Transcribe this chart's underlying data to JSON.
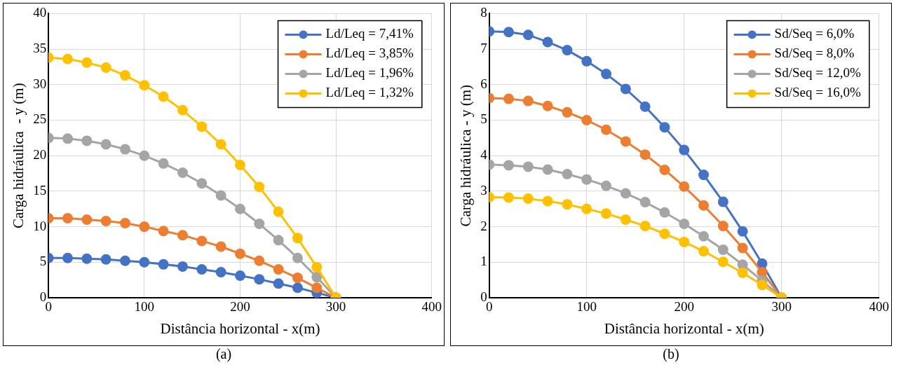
{
  "chart_data": [
    {
      "type": "line",
      "xlabel": "Distância horizontal - x(m)",
      "ylabel": "Carga hidráulica  - y (m)",
      "annotations": [
        "(a)"
      ],
      "x": [
        0,
        20,
        40,
        60,
        80,
        100,
        120,
        140,
        160,
        180,
        200,
        220,
        240,
        260,
        280,
        300
      ],
      "xlim": [
        0,
        400
      ],
      "xticks": [
        0,
        100,
        200,
        300,
        400
      ],
      "ylim": [
        0,
        40
      ],
      "yticks": [
        0,
        5,
        10,
        15,
        20,
        25,
        30,
        35,
        40
      ],
      "grid": true,
      "legend": "top right",
      "marker": "circle",
      "series": [
        {
          "name": "Ld/Leq = 7,41%",
          "color": "#4472c4",
          "values": [
            5.6,
            5.6,
            5.5,
            5.4,
            5.2,
            5.0,
            4.7,
            4.4,
            4.0,
            3.6,
            3.1,
            2.6,
            2.0,
            1.4,
            0.7,
            0
          ]
        },
        {
          "name": "Ld/Leq = 3,85%",
          "color": "#ed7d31",
          "values": [
            11.2,
            11.2,
            11.0,
            10.8,
            10.5,
            10.0,
            9.4,
            8.8,
            8.0,
            7.2,
            6.2,
            5.2,
            4.0,
            2.8,
            1.4,
            0
          ]
        },
        {
          "name": "Ld/Leq = 1,96%",
          "color": "#a5a5a5",
          "values": [
            22.5,
            22.4,
            22.1,
            21.6,
            20.9,
            20.0,
            18.9,
            17.6,
            16.1,
            14.4,
            12.5,
            10.4,
            8.1,
            5.6,
            2.9,
            0
          ]
        },
        {
          "name": "Ld/Leq = 1,32%",
          "color": "#ffc000",
          "values": [
            33.8,
            33.6,
            33.1,
            32.4,
            31.3,
            29.9,
            28.3,
            26.4,
            24.1,
            21.6,
            18.7,
            15.6,
            12.1,
            8.4,
            4.3,
            0
          ]
        }
      ]
    },
    {
      "type": "line",
      "xlabel": "Distância horizontal - x(m)",
      "ylabel": "Carga hidráulica - y (m)",
      "annotations": [
        "(b)"
      ],
      "x": [
        0,
        20,
        40,
        60,
        80,
        100,
        120,
        140,
        160,
        180,
        200,
        220,
        240,
        260,
        280,
        300
      ],
      "xlim": [
        0,
        400
      ],
      "xticks": [
        0,
        100,
        200,
        300,
        400
      ],
      "ylim": [
        0,
        8
      ],
      "yticks": [
        0,
        1,
        2,
        3,
        4,
        5,
        6,
        7,
        8
      ],
      "grid": true,
      "legend": "top right",
      "marker": "circle",
      "series": [
        {
          "name": "Sd/Seq = 6,0%",
          "color": "#4472c4",
          "values": [
            7.5,
            7.48,
            7.4,
            7.2,
            6.97,
            6.66,
            6.3,
            5.88,
            5.38,
            4.8,
            4.16,
            3.46,
            2.7,
            1.87,
            0.96,
            0
          ]
        },
        {
          "name": "Sd/Seq = 8,0%",
          "color": "#ed7d31",
          "values": [
            5.62,
            5.6,
            5.54,
            5.4,
            5.22,
            5.0,
            4.73,
            4.4,
            4.03,
            3.6,
            3.13,
            2.6,
            2.02,
            1.4,
            0.72,
            0
          ]
        },
        {
          "name": "Sd/Seq = 12,0%",
          "color": "#a5a5a5",
          "values": [
            3.75,
            3.73,
            3.69,
            3.61,
            3.48,
            3.33,
            3.15,
            2.94,
            2.69,
            2.4,
            2.08,
            1.73,
            1.35,
            0.93,
            0.48,
            0
          ]
        },
        {
          "name": "Sd/Seq = 16,0%",
          "color": "#ffc000",
          "values": [
            2.83,
            2.82,
            2.79,
            2.72,
            2.63,
            2.5,
            2.37,
            2.2,
            2.02,
            1.8,
            1.57,
            1.31,
            1.01,
            0.7,
            0.36,
            0
          ]
        }
      ]
    }
  ]
}
